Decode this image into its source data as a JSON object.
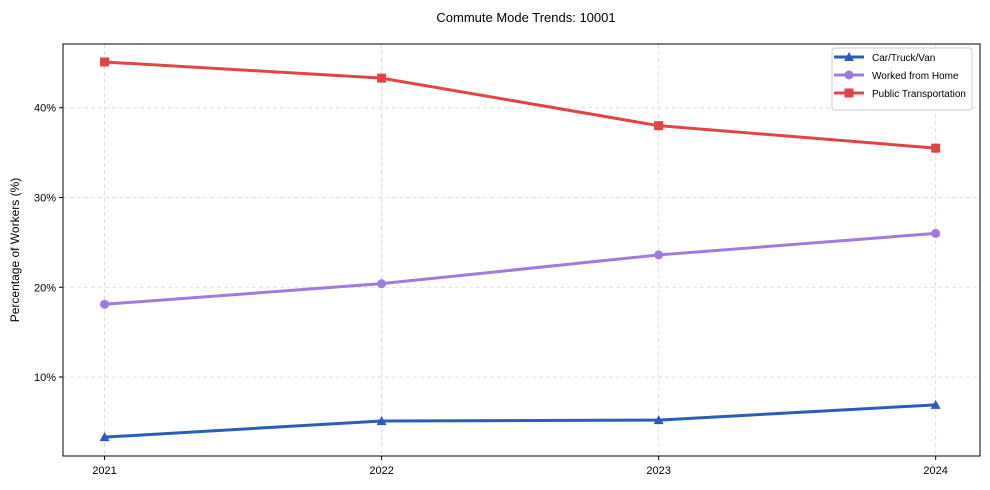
{
  "chart_data": {
    "type": "line",
    "title": "Commute Mode Trends: 10001",
    "xlabel": "",
    "ylabel": "Percentage of Workers (%)",
    "x": [
      2021,
      2022,
      2023,
      2024
    ],
    "x_tick_labels": [
      "2021",
      "2022",
      "2023",
      "2024"
    ],
    "y_ticks": [
      10,
      20,
      30,
      40
    ],
    "y_tick_labels": [
      "10%",
      "20%",
      "30%",
      "40%"
    ],
    "xlim": [
      2020.85,
      2024.16
    ],
    "ylim": [
      1.2,
      47.1
    ],
    "grid": true,
    "legend_position": "top-right",
    "series": [
      {
        "name": "Car/Truck/Van",
        "color": "#2a5db8",
        "marker": "triangle",
        "values": [
          3.3,
          5.1,
          5.2,
          6.9
        ]
      },
      {
        "name": "Worked from Home",
        "color": "#a07ade",
        "marker": "circle",
        "values": [
          18.1,
          20.4,
          23.6,
          26.0
        ]
      },
      {
        "name": "Public Transportation",
        "color": "#e04545",
        "marker": "square",
        "values": [
          45.1,
          43.3,
          38.0,
          35.5
        ]
      }
    ]
  }
}
